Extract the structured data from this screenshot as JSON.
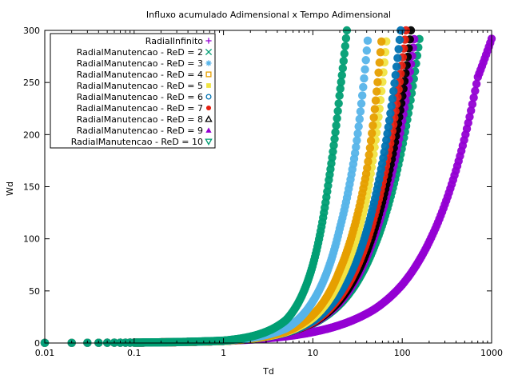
{
  "chart_data": {
    "type": "scatter",
    "title": "Influxo acumulado Adimensional x Tempo Adimensional",
    "xlabel": "Td",
    "ylabel": "Wd",
    "xscale": "log",
    "xlim": [
      0.01,
      1000
    ],
    "ylim": [
      0,
      300
    ],
    "xticks": [
      {
        "value": 0.01,
        "label": "0.01"
      },
      {
        "value": 0.1,
        "label": "0.1"
      },
      {
        "value": 1,
        "label": "1"
      },
      {
        "value": 10,
        "label": "10"
      },
      {
        "value": 100,
        "label": "100"
      },
      {
        "value": 1000,
        "label": "1000"
      }
    ],
    "yticks": [
      {
        "value": 0,
        "label": "0"
      },
      {
        "value": 50,
        "label": "50"
      },
      {
        "value": 100,
        "label": "100"
      },
      {
        "value": 150,
        "label": "150"
      },
      {
        "value": 200,
        "label": "200"
      },
      {
        "value": 250,
        "label": "250"
      },
      {
        "value": 300,
        "label": "300"
      }
    ],
    "legend_position": "top-left",
    "grid": false,
    "series": [
      {
        "name": "RadialInfinito",
        "color": "#9400d3",
        "marker": "plus",
        "x": [
          0.01,
          0.1,
          1,
          10,
          50,
          100,
          200,
          300,
          500,
          700,
          1000
        ],
        "y": [
          0.11,
          0.4,
          2.0,
          10.5,
          33,
          56,
          97,
          133,
          197,
          255,
          292
        ]
      },
      {
        "name": "RadialManutencao - ReD = 2",
        "color": "#009e73",
        "marker": "x",
        "x": [
          0.01,
          0.1,
          1,
          5,
          10,
          15,
          20,
          24
        ],
        "y": [
          0.11,
          0.4,
          2.3,
          22,
          75,
          155,
          240,
          300
        ]
      },
      {
        "name": "RadialManutencao - ReD = 3",
        "color": "#56b4e9",
        "marker": "asterisk",
        "x": [
          0.01,
          0.1,
          1,
          5,
          10,
          20,
          30,
          42
        ],
        "y": [
          0.11,
          0.4,
          2.2,
          14,
          40,
          110,
          185,
          300
        ]
      },
      {
        "name": "RadialManutencao - ReD = 4",
        "color": "#e69f00",
        "marker": "square-open",
        "x": [
          0.01,
          0.1,
          1,
          5,
          10,
          20,
          40,
          60
        ],
        "y": [
          0.11,
          0.4,
          2.1,
          11,
          27,
          70,
          165,
          300
        ]
      },
      {
        "name": "RadialManutencao - ReD = 5",
        "color": "#f0e442",
        "marker": "square-filled",
        "x": [
          0.01,
          0.1,
          1,
          5,
          10,
          20,
          40,
          68
        ],
        "y": [
          0.11,
          0.4,
          2.0,
          10.5,
          24,
          60,
          140,
          300
        ]
      },
      {
        "name": "RadialManutencao - ReD = 6",
        "color": "#0072b2",
        "marker": "circle-open",
        "x": [
          0.01,
          0.1,
          1,
          5,
          10,
          20,
          50,
          96
        ],
        "y": [
          0.11,
          0.4,
          2.0,
          10,
          21,
          48,
          140,
          300
        ]
      },
      {
        "name": "RadialManutencao - ReD = 7",
        "color": "#e51e10",
        "marker": "circle-filled",
        "x": [
          0.01,
          0.1,
          1,
          5,
          10,
          20,
          50,
          110
        ],
        "y": [
          0.11,
          0.4,
          2.0,
          10,
          20,
          44,
          125,
          300
        ]
      },
      {
        "name": "RadialManutencao - ReD = 8",
        "color": "#000000",
        "marker": "triangle-open",
        "x": [
          0.01,
          0.1,
          1,
          5,
          10,
          20,
          50,
          125
        ],
        "y": [
          0.11,
          0.4,
          2.0,
          10,
          19.5,
          41,
          112,
          300
        ]
      },
      {
        "name": "RadialManutencao - ReD = 9",
        "color": "#9400d3",
        "marker": "triangle-filled",
        "x": [
          0.01,
          0.1,
          1,
          5,
          10,
          20,
          50,
          140
        ],
        "y": [
          0.11,
          0.4,
          2.0,
          10,
          19,
          39,
          105,
          300
        ]
      },
      {
        "name": "RadialManutencao - ReD = 10",
        "color": "#009e73",
        "marker": "triangle-down-open",
        "x": [
          0.01,
          0.1,
          1,
          5,
          10,
          20,
          50,
          160
        ],
        "y": [
          0.11,
          0.4,
          2.0,
          10,
          18.5,
          37,
          95,
          300
        ]
      }
    ]
  }
}
